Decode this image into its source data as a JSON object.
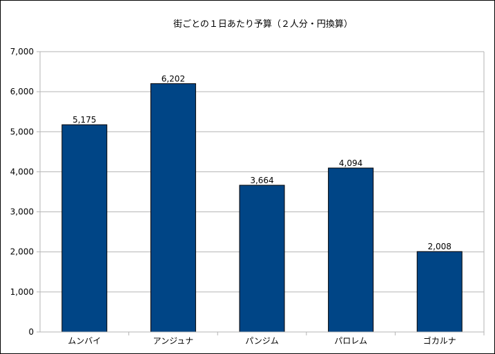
{
  "chart_data": {
    "type": "bar",
    "title": "街ごとの１日あたり予算（２人分・円換算）",
    "categories": [
      "ムンバイ",
      "アンジュナ",
      "パンジム",
      "パロレム",
      "ゴカルナ"
    ],
    "values": [
      5175,
      6202,
      3664,
      4094,
      2008
    ],
    "value_labels": [
      "5,175",
      "6,202",
      "3,664",
      "4,094",
      "2,008"
    ],
    "ylim": [
      0,
      7000
    ],
    "yticks": [
      "0",
      "1,000",
      "2,000",
      "3,000",
      "4,000",
      "5,000",
      "6,000",
      "7,000"
    ],
    "xlabel": "",
    "ylabel": "",
    "grid": true,
    "legend": "none",
    "bar_color": "#004586",
    "grid_color": "#b3b3b3"
  }
}
